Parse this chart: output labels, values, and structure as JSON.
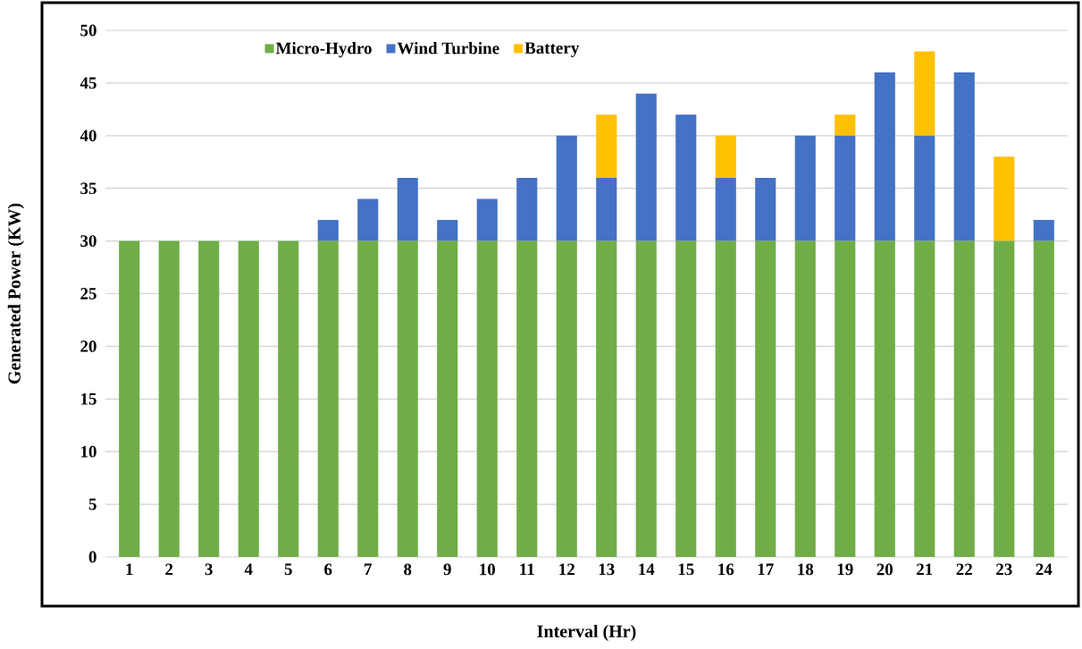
{
  "chart_data": {
    "type": "bar",
    "stacked": true,
    "xlabel": "Interval (Hr)",
    "ylabel": "Generated Power (KW)",
    "categories": [
      "1",
      "2",
      "3",
      "4",
      "5",
      "6",
      "7",
      "8",
      "9",
      "10",
      "11",
      "12",
      "13",
      "14",
      "15",
      "16",
      "17",
      "18",
      "19",
      "20",
      "21",
      "22",
      "23",
      "24"
    ],
    "series": [
      {
        "name": "Micro-Hydro",
        "color": "#70ad47",
        "values": [
          30,
          30,
          30,
          30,
          30,
          30,
          30,
          30,
          30,
          30,
          30,
          30,
          30,
          30,
          30,
          30,
          30,
          30,
          30,
          30,
          30,
          30,
          30,
          30
        ]
      },
      {
        "name": "Wind Turbine",
        "color": "#4472c4",
        "values": [
          0,
          0,
          0,
          0,
          0,
          2,
          4,
          6,
          2,
          4,
          6,
          10,
          6,
          14,
          12,
          6,
          6,
          10,
          10,
          16,
          10,
          16,
          0,
          2
        ]
      },
      {
        "name": "Battery",
        "color": "#ffc000",
        "values": [
          0,
          0,
          0,
          0,
          0,
          0,
          0,
          0,
          0,
          0,
          0,
          0,
          6,
          0,
          0,
          4,
          0,
          0,
          2,
          0,
          8,
          0,
          8,
          0
        ]
      }
    ],
    "ylim": [
      0,
      50
    ],
    "yticks": [
      0,
      5,
      10,
      15,
      20,
      25,
      30,
      35,
      40,
      45,
      50
    ],
    "grid": "y",
    "legend": "top"
  }
}
